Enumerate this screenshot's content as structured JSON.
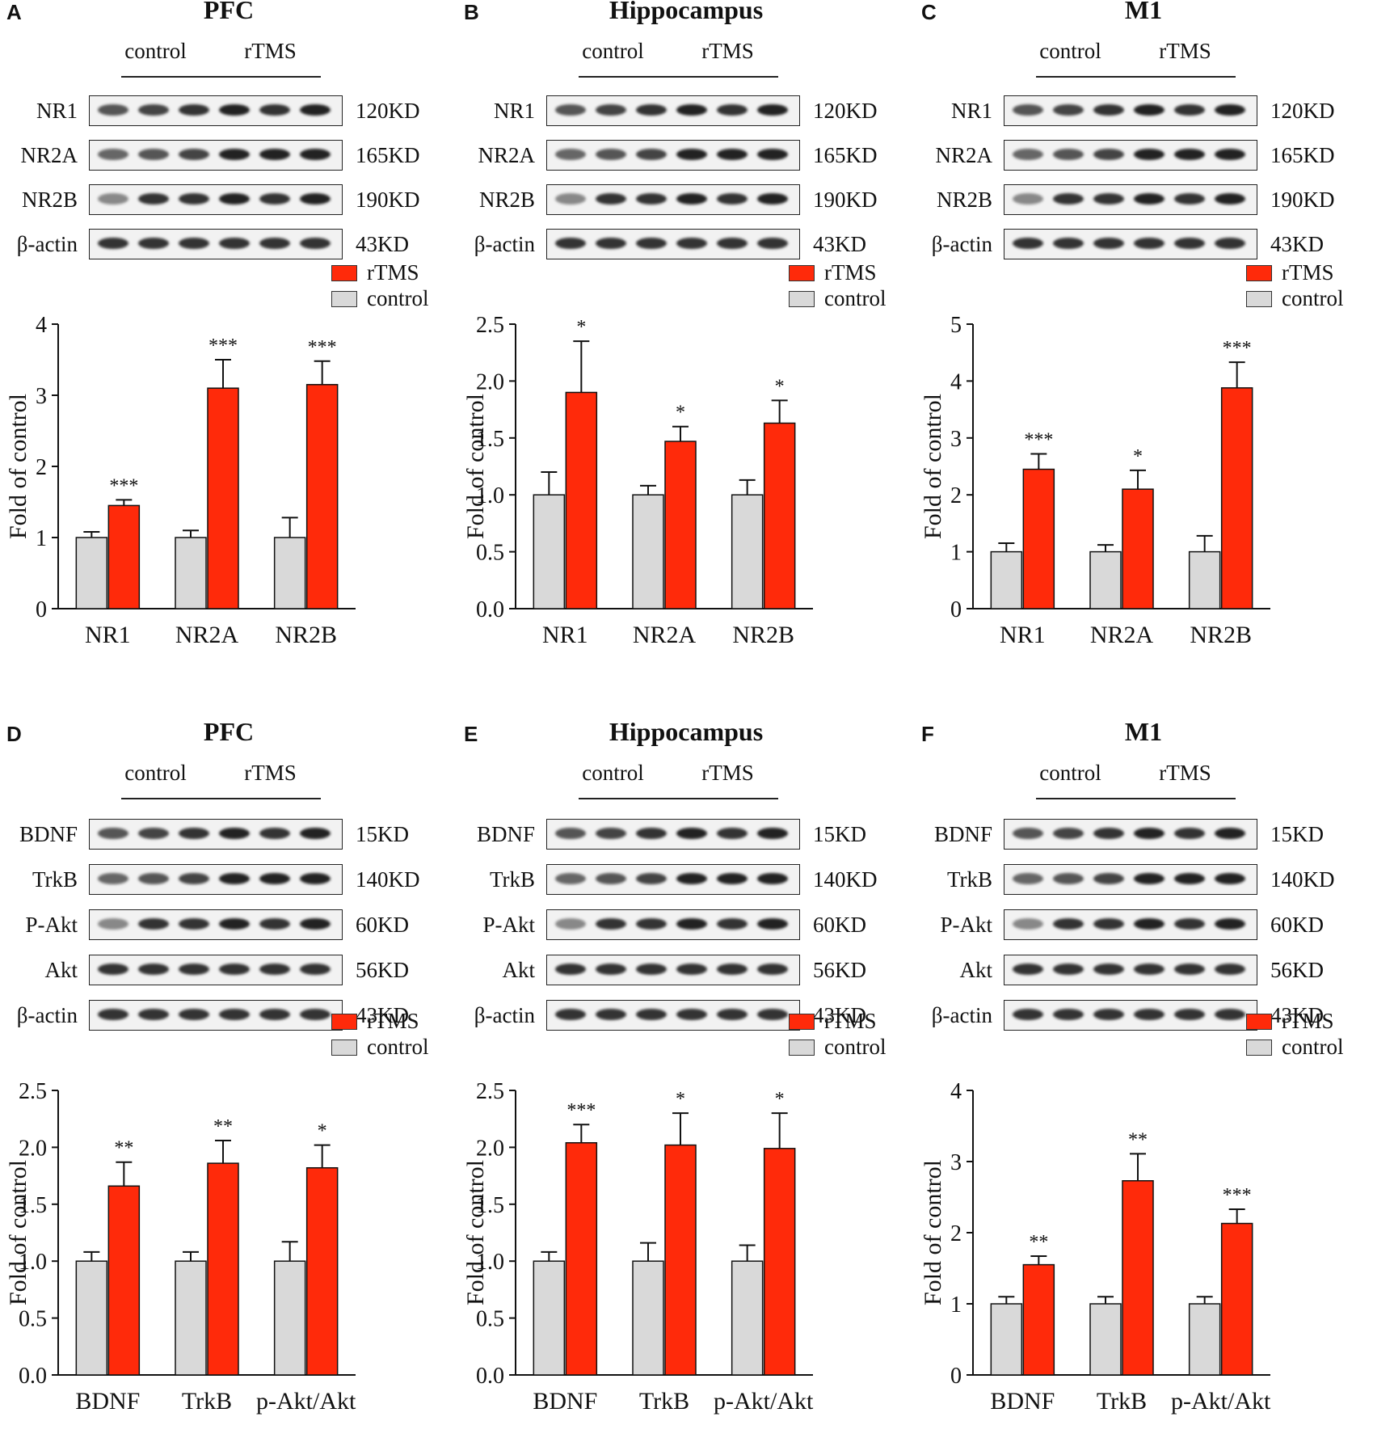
{
  "colors": {
    "rtms": "#ff2a0a",
    "control": "#d9d9d9"
  },
  "legend": {
    "rtms": "rTMS",
    "control": "control"
  },
  "groups": {
    "control": "control",
    "rtms": "rTMS"
  },
  "panels": [
    {
      "letter": "A",
      "title": "PFC",
      "blots": [
        {
          "name": "NR1",
          "kd": "120KD"
        },
        {
          "name": "NR2A",
          "kd": "165KD"
        },
        {
          "name": "NR2B",
          "kd": "190KD"
        },
        {
          "name": "β-actin",
          "kd": "43KD"
        }
      ]
    },
    {
      "letter": "B",
      "title": "Hippocampus",
      "blots": [
        {
          "name": "NR1",
          "kd": "120KD"
        },
        {
          "name": "NR2A",
          "kd": "165KD"
        },
        {
          "name": "NR2B",
          "kd": "190KD"
        },
        {
          "name": "β-actin",
          "kd": "43KD"
        }
      ]
    },
    {
      "letter": "C",
      "title": "M1",
      "blots": [
        {
          "name": "NR1",
          "kd": "120KD"
        },
        {
          "name": "NR2A",
          "kd": "165KD"
        },
        {
          "name": "NR2B",
          "kd": "190KD"
        },
        {
          "name": "β-actin",
          "kd": "43KD"
        }
      ]
    },
    {
      "letter": "D",
      "title": "PFC",
      "blots": [
        {
          "name": "BDNF",
          "kd": "15KD"
        },
        {
          "name": "TrkB",
          "kd": "140KD"
        },
        {
          "name": "P-Akt",
          "kd": "60KD"
        },
        {
          "name": "Akt",
          "kd": "56KD"
        },
        {
          "name": "β-actin",
          "kd": "43KD"
        }
      ]
    },
    {
      "letter": "E",
      "title": "Hippocampus",
      "blots": [
        {
          "name": "BDNF",
          "kd": "15KD"
        },
        {
          "name": "TrkB",
          "kd": "140KD"
        },
        {
          "name": "P-Akt",
          "kd": "60KD"
        },
        {
          "name": "Akt",
          "kd": "56KD"
        },
        {
          "name": "β-actin",
          "kd": "43KD"
        }
      ]
    },
    {
      "letter": "F",
      "title": "M1",
      "blots": [
        {
          "name": "BDNF",
          "kd": "15KD"
        },
        {
          "name": "TrkB",
          "kd": "140KD"
        },
        {
          "name": "P-Akt",
          "kd": "60KD"
        },
        {
          "name": "Akt",
          "kd": "56KD"
        },
        {
          "name": "β-actin",
          "kd": "43KD"
        }
      ]
    }
  ],
  "chart_data": [
    {
      "type": "bar",
      "panel": "A",
      "title": "PFC",
      "categories": [
        "NR1",
        "NR2A",
        "NR2B"
      ],
      "series": [
        {
          "name": "control",
          "values": [
            1.0,
            1.0,
            1.0
          ],
          "errors": [
            0.08,
            0.1,
            0.28
          ]
        },
        {
          "name": "rTMS",
          "values": [
            1.45,
            3.1,
            3.15
          ],
          "errors": [
            0.08,
            0.4,
            0.33
          ]
        }
      ],
      "significance": [
        "***",
        "***",
        "***"
      ],
      "ylabel": "Fold of control",
      "ylim": [
        0,
        4
      ],
      "yticks": [
        0,
        1,
        2,
        3,
        4
      ],
      "ytick_labels": [
        "0",
        "1",
        "2",
        "3",
        "4"
      ]
    },
    {
      "type": "bar",
      "panel": "B",
      "title": "Hippocampus",
      "categories": [
        "NR1",
        "NR2A",
        "NR2B"
      ],
      "series": [
        {
          "name": "control",
          "values": [
            1.0,
            1.0,
            1.0
          ],
          "errors": [
            0.2,
            0.08,
            0.13
          ]
        },
        {
          "name": "rTMS",
          "values": [
            1.9,
            1.47,
            1.63
          ],
          "errors": [
            0.45,
            0.13,
            0.2
          ]
        }
      ],
      "significance": [
        "*",
        "*",
        "*"
      ],
      "ylabel": "Fold of control",
      "ylim": [
        0,
        2.5
      ],
      "yticks": [
        0,
        0.5,
        1,
        1.5,
        2,
        2.5
      ],
      "ytick_labels": [
        "0.0",
        "0.5",
        "1.0",
        "1.5",
        "2.0",
        "2.5"
      ]
    },
    {
      "type": "bar",
      "panel": "C",
      "title": "M1",
      "categories": [
        "NR1",
        "NR2A",
        "NR2B"
      ],
      "series": [
        {
          "name": "control",
          "values": [
            1.0,
            1.0,
            1.0
          ],
          "errors": [
            0.15,
            0.12,
            0.28
          ]
        },
        {
          "name": "rTMS",
          "values": [
            2.45,
            2.1,
            3.88
          ],
          "errors": [
            0.27,
            0.33,
            0.45
          ]
        }
      ],
      "significance": [
        "***",
        "*",
        "***"
      ],
      "ylabel": "Fold of control",
      "ylim": [
        0,
        5
      ],
      "yticks": [
        0,
        1,
        2,
        3,
        4,
        5
      ],
      "ytick_labels": [
        "0",
        "1",
        "2",
        "3",
        "4",
        "5"
      ]
    },
    {
      "type": "bar",
      "panel": "D",
      "title": "PFC",
      "categories": [
        "BDNF",
        "TrkB",
        "p-Akt/Akt"
      ],
      "series": [
        {
          "name": "control",
          "values": [
            1.0,
            1.0,
            1.0
          ],
          "errors": [
            0.08,
            0.08,
            0.17
          ]
        },
        {
          "name": "rTMS",
          "values": [
            1.66,
            1.86,
            1.82
          ],
          "errors": [
            0.21,
            0.2,
            0.2
          ]
        }
      ],
      "significance": [
        "**",
        "**",
        "*"
      ],
      "ylabel": "Fold of control",
      "ylim": [
        0,
        2.5
      ],
      "yticks": [
        0,
        0.5,
        1,
        1.5,
        2,
        2.5
      ],
      "ytick_labels": [
        "0.0",
        "0.5",
        "1.0",
        "1.5",
        "2.0",
        "2.5"
      ]
    },
    {
      "type": "bar",
      "panel": "E",
      "title": "Hippocampus",
      "categories": [
        "BDNF",
        "TrkB",
        "p-Akt/Akt"
      ],
      "series": [
        {
          "name": "control",
          "values": [
            1.0,
            1.0,
            1.0
          ],
          "errors": [
            0.08,
            0.16,
            0.14
          ]
        },
        {
          "name": "rTMS",
          "values": [
            2.04,
            2.02,
            1.99
          ],
          "errors": [
            0.16,
            0.28,
            0.31
          ]
        }
      ],
      "significance": [
        "***",
        "*",
        "*"
      ],
      "ylabel": "Fold of control",
      "ylim": [
        0,
        2.5
      ],
      "yticks": [
        0,
        0.5,
        1,
        1.5,
        2,
        2.5
      ],
      "ytick_labels": [
        "0.0",
        "0.5",
        "1.0",
        "1.5",
        "2.0",
        "2.5"
      ]
    },
    {
      "type": "bar",
      "panel": "F",
      "title": "M1",
      "categories": [
        "BDNF",
        "TrkB",
        "p-Akt/Akt"
      ],
      "series": [
        {
          "name": "control",
          "values": [
            1.0,
            1.0,
            1.0
          ],
          "errors": [
            0.1,
            0.1,
            0.1
          ]
        },
        {
          "name": "rTMS",
          "values": [
            1.55,
            2.73,
            2.13
          ],
          "errors": [
            0.12,
            0.38,
            0.2
          ]
        }
      ],
      "significance": [
        "**",
        "**",
        "***"
      ],
      "ylabel": "Fold of control",
      "ylim": [
        0,
        4
      ],
      "yticks": [
        0,
        1,
        2,
        3,
        4
      ],
      "ytick_labels": [
        "0",
        "1",
        "2",
        "3",
        "4"
      ]
    }
  ]
}
